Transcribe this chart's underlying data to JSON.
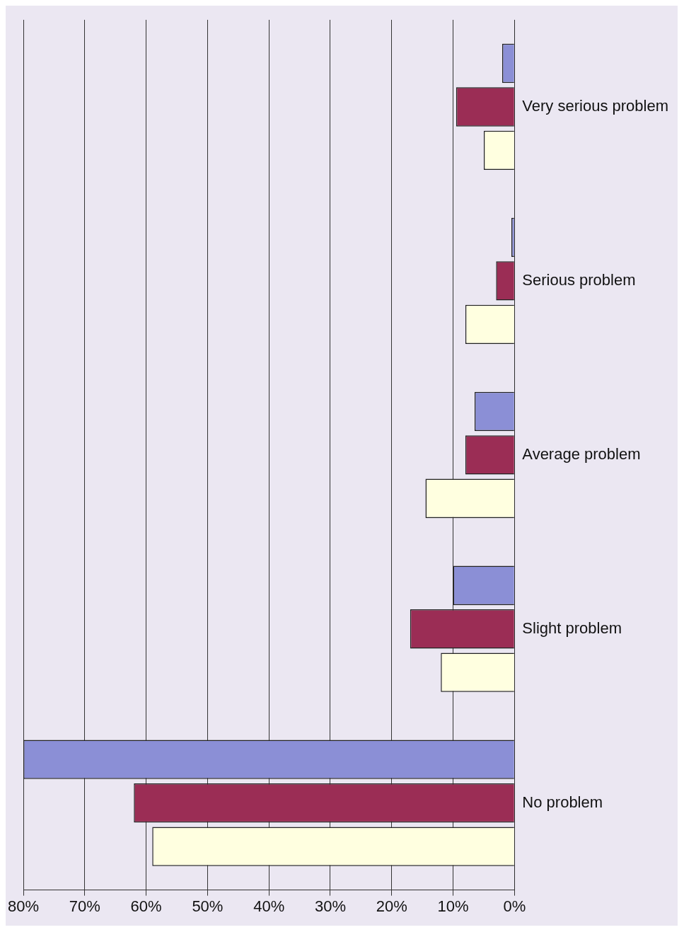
{
  "chart_data": {
    "type": "bar",
    "orientation": "horizontal",
    "categories": [
      "Very serious problem",
      "Serious problem",
      "Average problem",
      "Slight problem",
      "No problem"
    ],
    "series": [
      {
        "color": "#8b8fd6",
        "values": [
          2,
          0.5,
          6.5,
          10,
          80
        ]
      },
      {
        "color": "#9b2d55",
        "values": [
          9.5,
          3,
          8,
          17,
          62
        ]
      },
      {
        "color": "#ffffe0",
        "values": [
          5,
          8,
          14.5,
          12,
          59
        ]
      }
    ],
    "xlim": [
      80,
      0
    ],
    "xticks": [
      {
        "value": 80,
        "label": "80%"
      },
      {
        "value": 70,
        "label": "70%"
      },
      {
        "value": 60,
        "label": "60%"
      },
      {
        "value": 50,
        "label": "50%"
      },
      {
        "value": 40,
        "label": "40%"
      },
      {
        "value": 30,
        "label": "30%"
      },
      {
        "value": 20,
        "label": "20%"
      },
      {
        "value": 10,
        "label": "10%"
      },
      {
        "value": 0,
        "label": "0%"
      }
    ],
    "grid": "x",
    "legend": false
  }
}
